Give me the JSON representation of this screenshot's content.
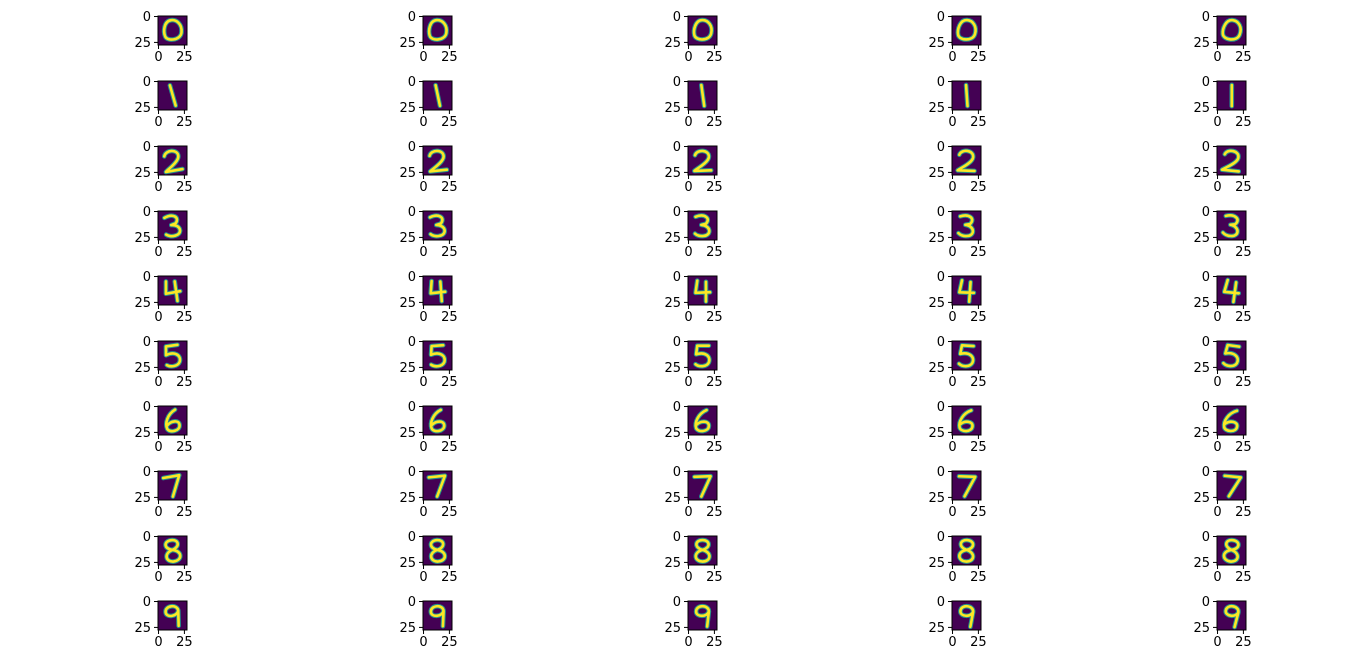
{
  "chart_data": {
    "type": "image_grid",
    "title": "",
    "rows": 10,
    "cols": 5,
    "image_size": 28,
    "colormap": "viridis",
    "background_color": "#440154",
    "stroke_color": "#fde725",
    "edge_color": "#21918c",
    "axis": {
      "xticks": [
        0,
        25
      ],
      "yticks": [
        0,
        25
      ],
      "xtick_labels": [
        "0",
        "25"
      ],
      "ytick_labels": [
        "0",
        "25"
      ]
    },
    "digits": [
      [
        "0",
        "0",
        "0",
        "0",
        "0"
      ],
      [
        "1",
        "1",
        "1",
        "1",
        "1"
      ],
      [
        "2",
        "2",
        "2",
        "2",
        "2"
      ],
      [
        "3",
        "3",
        "3",
        "3",
        "3"
      ],
      [
        "4",
        "4",
        "4",
        "4",
        "4"
      ],
      [
        "5",
        "5",
        "5",
        "5",
        "5"
      ],
      [
        "6",
        "6",
        "6",
        "6",
        "6"
      ],
      [
        "7",
        "7",
        "7",
        "7",
        "7"
      ],
      [
        "8",
        "8",
        "8",
        "8",
        "8"
      ],
      [
        "9",
        "9",
        "9",
        "9",
        "9"
      ]
    ]
  }
}
